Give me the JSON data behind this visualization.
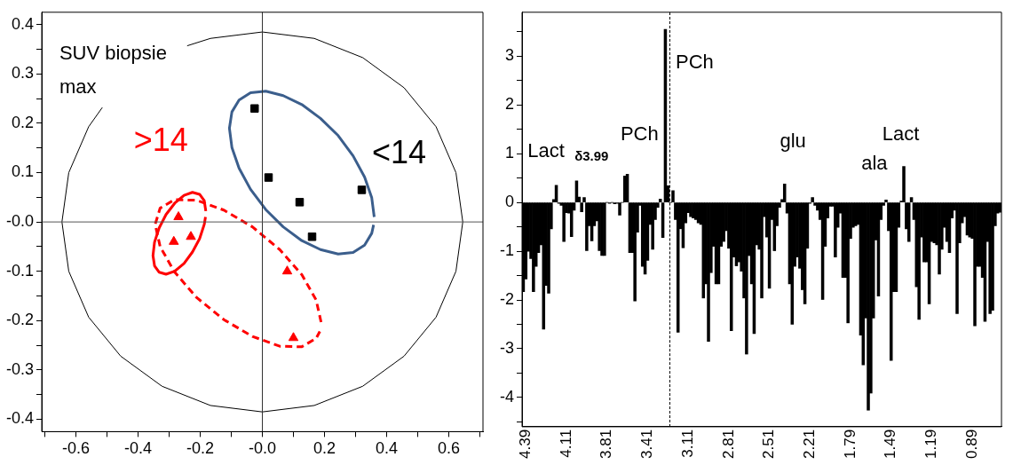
{
  "chart_data": [
    {
      "type": "scatter",
      "annotations": [
        "SUV biopsie max"
      ],
      "legend": false,
      "grid": false,
      "xlim": [
        -0.71,
        0.71
      ],
      "xticks": [
        {
          "value": -0.7,
          "label": null
        },
        -0.6,
        {
          "value": -0.5,
          "label": null
        },
        -0.4,
        {
          "value": -0.3,
          "label": null
        },
        -0.2,
        {
          "value": -0.1,
          "label": null
        },
        {
          "value": 0,
          "label": "-0.0"
        },
        {
          "value": 0.1,
          "label": null
        },
        0.2,
        {
          "value": 0.3,
          "label": null
        },
        0.4,
        {
          "value": 0.5,
          "label": null
        },
        0.6,
        {
          "value": 0.7,
          "label": null
        }
      ],
      "ylim": [
        -0.425,
        0.425
      ],
      "yticks": [
        0.4,
        {
          "value": 0.35,
          "label": null
        },
        0.3,
        {
          "value": 0.25,
          "label": null
        },
        0.2,
        {
          "value": 0.15,
          "label": null
        },
        0.1,
        {
          "value": 0.05,
          "label": null
        },
        {
          "value": 0,
          "label": "-0.0"
        },
        {
          "value": -0.05,
          "label": null
        },
        -0.1,
        {
          "value": -0.15,
          "label": null
        },
        -0.2,
        {
          "value": -0.25,
          "label": null
        },
        -0.3,
        {
          "value": -0.35,
          "label": null
        },
        -0.4
      ],
      "ref_lines": [
        {
          "axis": "x",
          "value": 0,
          "color": "#333333"
        },
        {
          "axis": "y",
          "value": 0,
          "color": "#555555"
        }
      ],
      "series": [
        {
          "type": "line",
          "marker": "none",
          "color": "#000000",
          "x": [
            -0.515,
            -0.559,
            -0.623,
            -0.645,
            -0.623,
            -0.559,
            -0.456,
            -0.323,
            -0.167,
            0,
            0.167,
            0.323,
            0.456,
            0.559,
            0.623,
            0.645,
            0.623,
            0.559,
            0.456,
            0.323,
            0.167,
            0,
            -0.167,
            -0.242
          ],
          "values": [
            0.232,
            0.193,
            0.1,
            0,
            -0.1,
            -0.193,
            -0.272,
            -0.333,
            -0.372,
            -0.385,
            -0.372,
            -0.333,
            -0.272,
            -0.193,
            -0.1,
            0,
            0.1,
            0.193,
            0.272,
            0.333,
            0.372,
            0.385,
            0.372,
            0.357
          ]
        },
        {
          "type": "line",
          "marker": "none",
          "color": "#3b5e8c",
          "x": [
            0.36,
            0.352,
            0.329,
            0.292,
            0.244,
            0.187,
            0.127,
            0.067,
            0.011,
            -0.038,
            -0.075,
            -0.098,
            -0.106,
            -0.098,
            -0.075,
            -0.038,
            0.011,
            0.067,
            0.127,
            0.187,
            0.244,
            0.292,
            0.329,
            0.352,
            0.358
          ],
          "values": [
            0.01,
            0.049,
            0.091,
            0.134,
            0.175,
            0.21,
            0.238,
            0.256,
            0.265,
            0.262,
            0.247,
            0.223,
            0.19,
            0.151,
            0.109,
            0.066,
            0.025,
            -0.01,
            -0.038,
            -0.056,
            -0.065,
            -0.062,
            -0.047,
            -0.023,
            -0.006
          ]
        },
        {
          "type": "line",
          "marker": "none",
          "color": "#ff0000",
          "x": [
            -0.182,
            -0.187,
            -0.202,
            -0.225,
            -0.252,
            -0.282,
            -0.31,
            -0.332,
            -0.347,
            -0.352,
            -0.347,
            -0.332,
            -0.31,
            -0.282,
            -0.252,
            -0.225,
            -0.202,
            -0.187,
            -0.183
          ],
          "values": [
            0.022,
            0.043,
            0.056,
            0.06,
            0.054,
            0.038,
            0.015,
            -0.012,
            -0.041,
            -0.068,
            -0.089,
            -0.102,
            -0.106,
            -0.1,
            -0.084,
            -0.061,
            -0.034,
            -0.005,
            0.01
          ]
        },
        {
          "type": "line",
          "marker": "none",
          "line_style": "dashed",
          "color": "#ff0000",
          "x": [
            0.189,
            0.173,
            0.127,
            0.056,
            -0.032,
            -0.124,
            -0.212,
            -0.283,
            -0.329,
            -0.345,
            -0.329,
            -0.283,
            -0.212,
            -0.124,
            -0.032,
            0.056,
            0.127,
            0.173,
            0.185
          ],
          "values": [
            -0.203,
            -0.158,
            -0.107,
            -0.056,
            -0.01,
            0.024,
            0.044,
            0.045,
            0.028,
            -0.005,
            -0.05,
            -0.101,
            -0.153,
            -0.198,
            -0.232,
            -0.252,
            -0.253,
            -0.236,
            -0.222
          ]
        },
        {
          "name": "<14",
          "type": "scatter",
          "marker": "square",
          "color": "#000000",
          "x": [
            -0.025,
            0.02,
            0.12,
            0.32,
            0.16
          ],
          "values": [
            0.23,
            0.09,
            0.04,
            0.065,
            -0.03
          ]
        },
        {
          "name": ">14",
          "type": "scatter",
          "marker": "triangle",
          "color": "#ff0000",
          "x": [
            -0.27,
            -0.285,
            -0.23,
            0.08,
            0.1
          ],
          "values": [
            0.01,
            -0.04,
            -0.03,
            -0.1,
            -0.235
          ]
        }
      ]
    },
    {
      "type": "bar",
      "legend": false,
      "grid": false,
      "annotations": [
        "Lact",
        "δ3.99",
        "PCh",
        "PCh",
        "glu",
        "ala",
        "Lact"
      ],
      "ylim": [
        -4.6,
        3.9
      ],
      "yticks": [
        {
          "value": -4.5,
          "label": null
        },
        -4,
        {
          "value": -3.5,
          "label": null
        },
        -3,
        {
          "value": -2.5,
          "label": null
        },
        -2,
        {
          "value": -1.5,
          "label": null
        },
        -1,
        {
          "value": -0.5,
          "label": null
        },
        0,
        {
          "value": 0.5,
          "label": null
        },
        1,
        {
          "value": 1.5,
          "label": null
        },
        2,
        {
          "value": 2.5,
          "label": null
        },
        3,
        {
          "value": 3.5,
          "label": null
        }
      ],
      "categories": [
        null,
        "4.39",
        null,
        null,
        null,
        null,
        null,
        null,
        null,
        null,
        null,
        null,
        null,
        null,
        null,
        null,
        null,
        "4.11",
        null,
        null,
        null,
        null,
        null,
        null,
        null,
        null,
        null,
        null,
        null,
        null,
        null,
        null,
        null,
        "3.81",
        null,
        null,
        null,
        null,
        null,
        null,
        null,
        null,
        null,
        null,
        null,
        null,
        null,
        null,
        null,
        "3.41",
        null,
        null,
        null,
        null,
        null,
        null,
        null,
        null,
        null,
        null,
        null,
        null,
        null,
        null,
        null,
        "3.11",
        null,
        null,
        null,
        null,
        null,
        null,
        null,
        null,
        null,
        null,
        null,
        null,
        null,
        null,
        null,
        "2.81",
        null,
        null,
        null,
        null,
        null,
        null,
        null,
        null,
        null,
        null,
        null,
        null,
        null,
        null,
        null,
        "2.51",
        null,
        null,
        null,
        null,
        null,
        null,
        null,
        null,
        null,
        null,
        null,
        null,
        null,
        null,
        null,
        "2.21",
        null,
        null,
        null,
        null,
        null,
        null,
        null,
        null,
        null,
        null,
        null,
        null,
        null,
        null,
        null,
        "1.79",
        null,
        null,
        null,
        null,
        null,
        null,
        null,
        null,
        null,
        null,
        null,
        null,
        null,
        null,
        null,
        "1.49",
        null,
        null,
        null,
        null,
        null,
        null,
        null,
        null,
        null,
        null,
        null,
        null,
        null,
        null,
        null,
        "1.19",
        null,
        null,
        null,
        null,
        null,
        null,
        null,
        null,
        null,
        null,
        null,
        null,
        null,
        null,
        null,
        "0.89",
        null,
        null,
        null,
        null,
        null,
        null,
        null,
        null,
        null,
        null,
        null
      ],
      "series": [
        {
          "color": "#000000",
          "values": [
            -1.83,
            -1.57,
            -1.0,
            -1.15,
            -1.83,
            -1.31,
            -1.03,
            -0.87,
            -2.6,
            -1.7,
            -1.86,
            -0.54,
            0.06,
            0.35,
            -0.02,
            -0.06,
            -0.8,
            -0.21,
            -0.22,
            -0.7,
            -0.16,
            0.44,
            0.11,
            -0.19,
            0.1,
            -0.99,
            -0.48,
            -0.79,
            -0.48,
            -0.38,
            -0.99,
            -1.09,
            -1.09,
            0,
            -0.02,
            0,
            -0.03,
            -0.02,
            -0.26,
            0,
            0.54,
            0.58,
            -1.03,
            -1.03,
            -2.02,
            -0.61,
            -0.06,
            -1.31,
            -1.47,
            -1.19,
            -0.45,
            -0.96,
            -0.35,
            -0.1,
            0.07,
            -0.72,
            3.55,
            0.34,
            0,
            0.24,
            -0.35,
            -2.66,
            -0.54,
            -0.93,
            -0.42,
            -0.21,
            -0.29,
            -0.32,
            -0.35,
            -0.42,
            -0.45,
            -1.96,
            -1.67,
            -2.85,
            -1.44,
            -0.9,
            -1.67,
            -1.67,
            -0.9,
            -0.8,
            -0.58,
            -0.94,
            -2.63,
            -1.12,
            -1.3,
            -1.22,
            -1.41,
            -1.96,
            -3.11,
            -1.09,
            -1.67,
            -2.69,
            -0.87,
            -0.96,
            -1.96,
            -0.29,
            -0.71,
            -1.76,
            -0.35,
            -0.99,
            -0.48,
            -0.1,
            0.06,
            0.38,
            -0.22,
            -1.67,
            -2.5,
            -1.31,
            -1.12,
            -1.35,
            -1.79,
            -2.08,
            -0.94,
            -0.02,
            0.1,
            -0.06,
            -0.16,
            -0.35,
            -1.99,
            -0.9,
            -0.32,
            -0.08,
            -0.08,
            -1.12,
            -0.51,
            -0.22,
            -1.54,
            -1.54,
            -2.47,
            -0.74,
            -0.51,
            -0.48,
            -0.45,
            -2.72,
            -3.33,
            -2.37,
            -4.26,
            -3.91,
            -2.37,
            -0.77,
            -1.92,
            -0.35,
            -0.06,
            0.05,
            -0.58,
            -3.24,
            -1.83,
            -1.83,
            -0.51,
            0.03,
            0.74,
            -0.54,
            -0.8,
            0.1,
            -0.35,
            -1.73,
            -2.4,
            -0.71,
            -1.22,
            -1.22,
            -2.08,
            -0.8,
            -0.83,
            -0.87,
            -1.47,
            -0.96,
            -0.51,
            -0.8,
            -1.03,
            -0.32,
            -0.16,
            -2.28,
            -0.83,
            -0.42,
            -0.29,
            -0.67,
            -0.71,
            -0.74,
            -2.53,
            -1.31,
            -1.31,
            -1.54,
            -2.44,
            -0.8,
            -2.28,
            -2.21,
            -0.48,
            -0.22,
            -0.2
          ]
        }
      ]
    }
  ]
}
